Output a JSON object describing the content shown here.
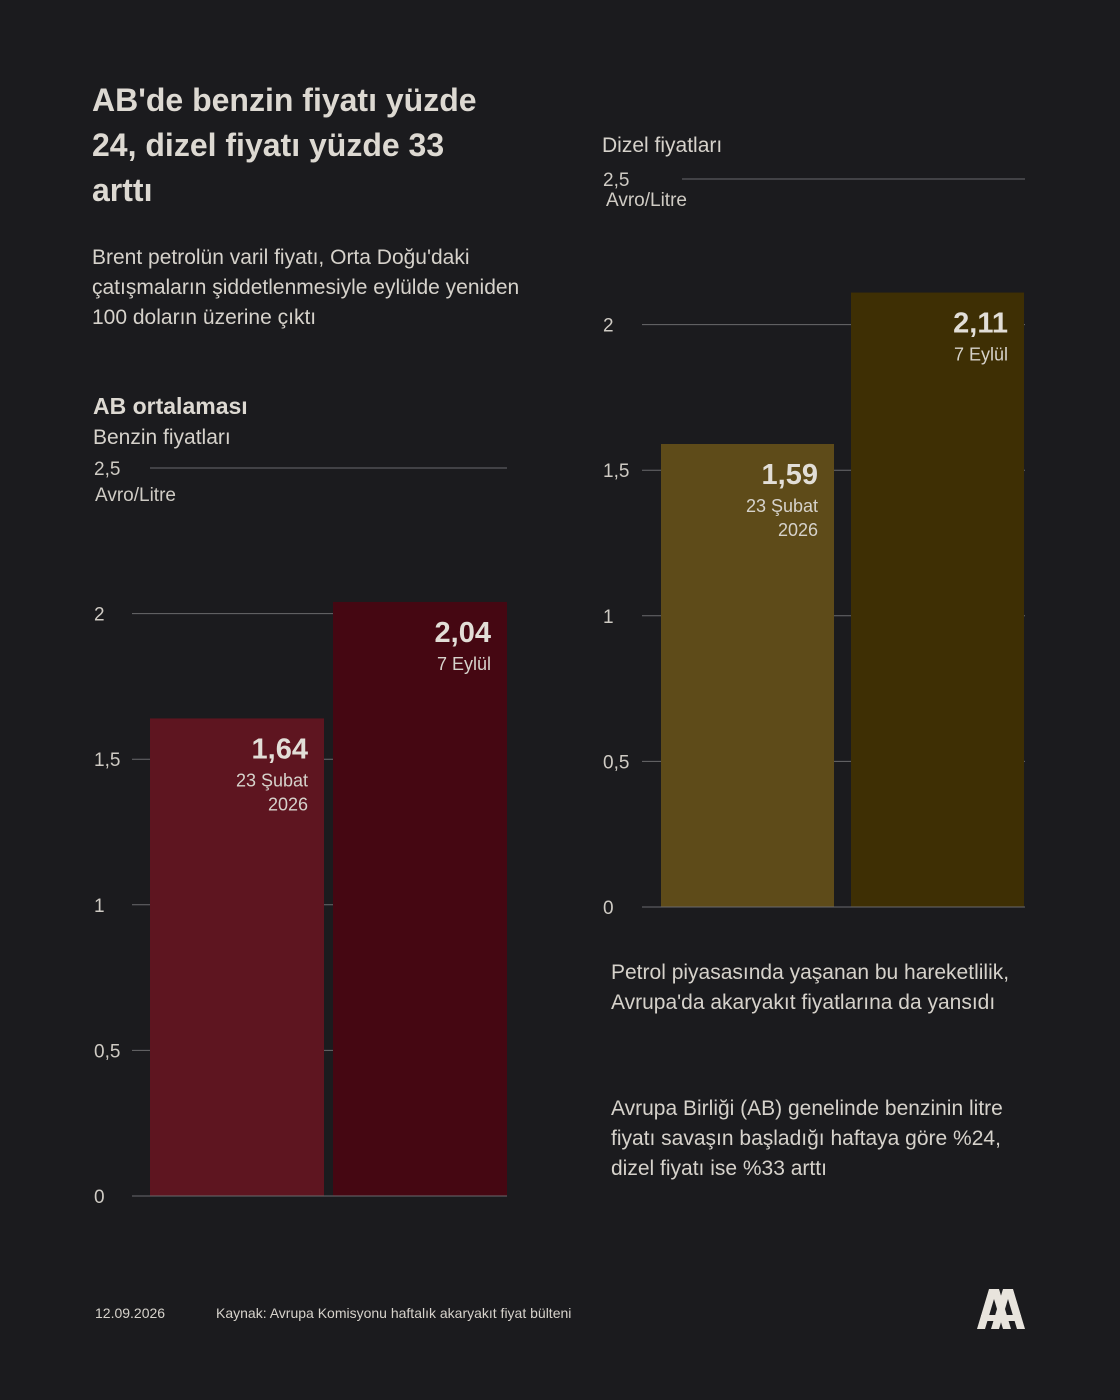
{
  "title": "AB'de benzin fiyatı yüzde 24, dizel fiyatı yüzde 33 arttı",
  "subtitle": "Brent petrolün varil fiyatı, Orta Doğu'daki çatışmaların şiddetlenmesiyle eylülde yeniden 100 doların üzerine çıktı",
  "notes": [
    "Petrol piyasasında yaşanan bu hareketlilik, Avrupa'da akaryakıt fiyatlarına da yansıdı",
    "Avrupa Birliği (AB) genelinde benzinin litre fiyatı savaşın başladığı haftaya göre %24, dizel fiyatı ise %33 arttı"
  ],
  "footer": {
    "date": "12.09.2026",
    "source": "Kaynak: Avrupa Komisyonu haftalık akaryakıt fiyat bülteni"
  },
  "logo": {
    "icon": "aa-logo-icon",
    "text": "AA"
  },
  "chart_data": [
    {
      "type": "bar",
      "heading": "AB ortalaması",
      "title": "Benzin fiyatları",
      "ylabel": "Avro/Litre",
      "ylim": [
        0,
        2.5
      ],
      "yticks": [
        "0",
        "0,5",
        "1",
        "1,5",
        "2",
        "2,5"
      ],
      "grid": true,
      "categories": [
        "23 Şubat 2026",
        "7 Eylül"
      ],
      "category_lines": [
        [
          "23 Şubat",
          "2026"
        ],
        [
          "7 Eylül"
        ]
      ],
      "values": [
        1.64,
        2.04
      ],
      "value_labels": [
        "1,64",
        "2,04"
      ],
      "colors": [
        "#5e1520",
        "#450712"
      ]
    },
    {
      "type": "bar",
      "title": "Dizel fiyatları",
      "ylabel": "Avro/Litre",
      "ylim": [
        0,
        2.5
      ],
      "yticks": [
        "0",
        "0,5",
        "1",
        "1,5",
        "2",
        "2,5"
      ],
      "grid": true,
      "categories": [
        "23 Şubat 2026",
        "7 Eylül"
      ],
      "category_lines": [
        [
          "23 Şubat",
          "2026"
        ],
        [
          "7 Eylül"
        ]
      ],
      "values": [
        1.59,
        2.11
      ],
      "value_labels": [
        "1,59",
        "2,11"
      ],
      "colors": [
        "#5e4b19",
        "#3e2f04"
      ]
    }
  ]
}
